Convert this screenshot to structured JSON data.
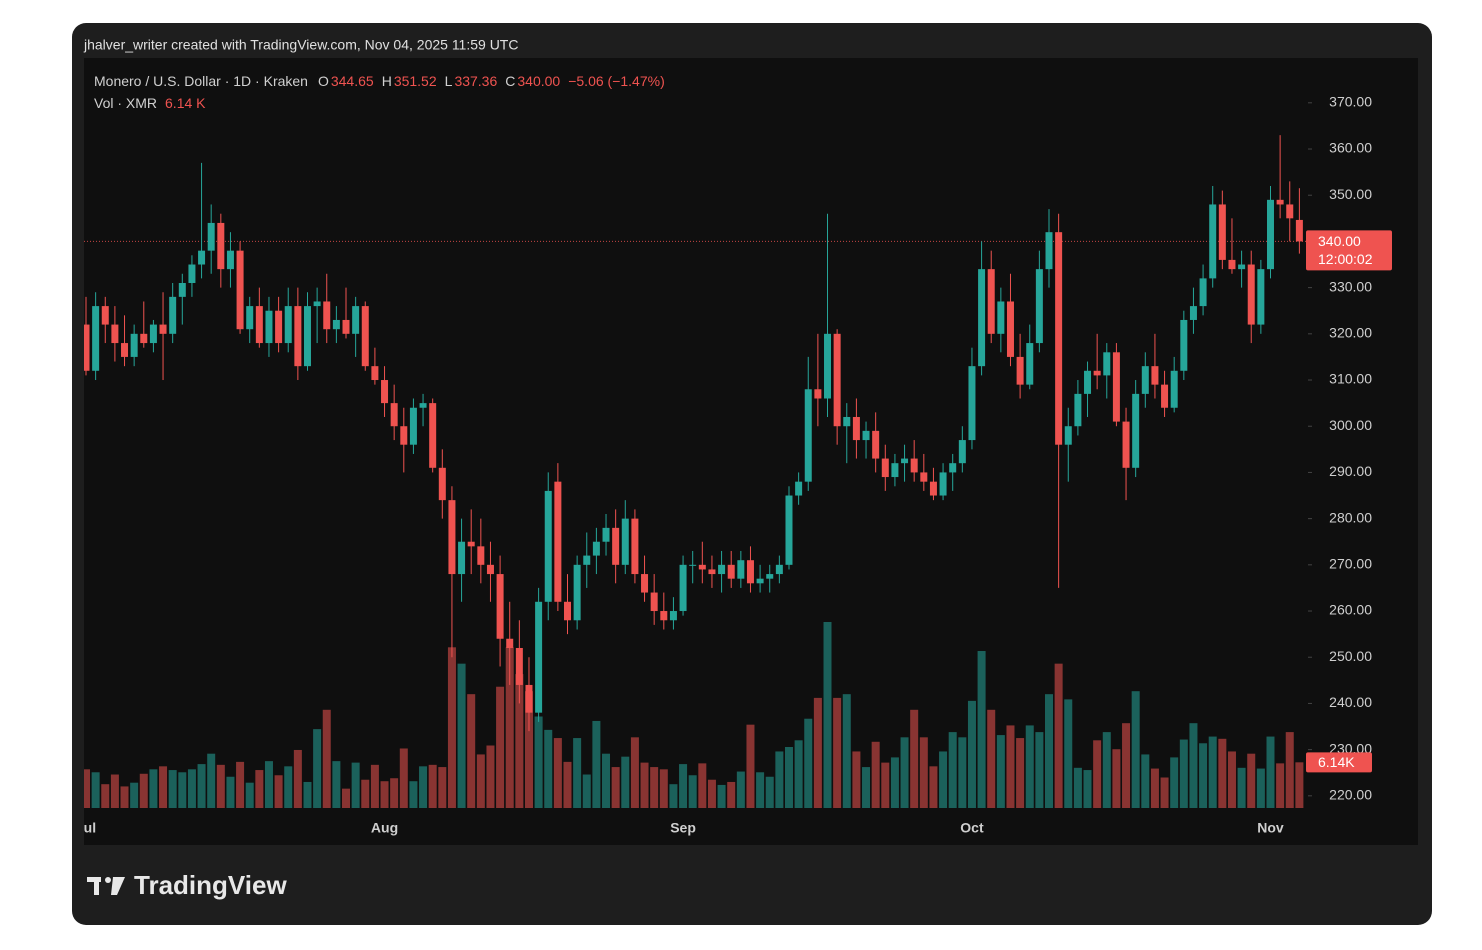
{
  "chart_data": {
    "type": "candlestick",
    "attribution": "jhalver_writer created with TradingView.com, Nov 04, 2025 11:59 UTC",
    "title": "Monero / U.S. Dollar · 1D · Kraken",
    "ohlc_header": [
      {
        "key": "O",
        "text": "344.65"
      },
      {
        "key": "H",
        "text": "351.52"
      },
      {
        "key": "L",
        "text": "337.36"
      },
      {
        "key": "C",
        "text": "340.00"
      }
    ],
    "change": "−5.06 (−1.47%)",
    "volume_header": "Vol · XMR",
    "volume_value": "6.14 K",
    "last_price_label": "340.00",
    "countdown": "12:00:02",
    "last_volume_label": "6.14K",
    "brand": "TradingView",
    "up_color": "#26a69a",
    "down_color": "#ef5350",
    "categories": [
      "Jul",
      null,
      null,
      null,
      null,
      null,
      null,
      null,
      null,
      null,
      null,
      null,
      null,
      null,
      null,
      null,
      null,
      null,
      null,
      null,
      null,
      null,
      null,
      null,
      null,
      null,
      null,
      null,
      null,
      null,
      null,
      "Aug",
      null,
      null,
      null,
      null,
      null,
      null,
      null,
      null,
      null,
      null,
      null,
      null,
      null,
      null,
      null,
      null,
      null,
      null,
      null,
      null,
      null,
      null,
      null,
      null,
      null,
      null,
      null,
      null,
      null,
      null,
      "Sep",
      null,
      null,
      null,
      null,
      null,
      null,
      null,
      null,
      null,
      null,
      null,
      null,
      null,
      null,
      null,
      null,
      null,
      null,
      null,
      null,
      null,
      null,
      null,
      null,
      null,
      null,
      null,
      null,
      null,
      "Oct",
      null,
      null,
      null,
      null,
      null,
      null,
      null,
      null,
      null,
      null,
      null,
      null,
      null,
      null,
      null,
      null,
      null,
      null,
      null,
      null,
      null,
      null,
      null,
      null,
      null,
      null,
      null,
      null,
      null,
      null,
      "Nov",
      null,
      null,
      null
    ],
    "open": [
      322,
      312,
      326,
      322,
      318,
      315,
      320,
      318,
      322,
      320,
      328,
      331,
      335,
      338,
      344,
      334,
      338,
      321,
      326,
      318,
      325,
      318,
      326,
      313,
      326,
      327,
      321,
      323,
      320,
      326,
      313,
      310,
      305,
      300,
      296,
      304,
      305,
      291,
      284,
      268,
      275,
      274,
      270,
      268,
      254,
      252,
      244,
      238,
      262,
      288,
      262,
      258,
      270,
      272,
      275,
      278,
      270,
      280,
      268,
      264,
      260,
      258,
      260,
      270,
      270,
      269,
      268,
      270,
      267,
      271,
      266,
      267,
      268,
      270,
      285,
      288,
      308,
      306,
      320,
      300,
      302,
      297,
      299,
      293,
      289,
      292,
      293,
      290,
      288,
      285,
      290,
      292,
      297,
      313,
      334,
      320,
      327,
      315,
      309,
      318,
      334,
      342,
      296,
      300,
      307,
      312,
      311,
      316,
      301,
      291,
      307,
      313,
      309,
      304,
      312,
      323,
      326,
      332,
      348,
      336,
      334,
      335,
      322,
      334,
      349,
      348,
      344.65
    ],
    "high": [
      328,
      329,
      328,
      326,
      324,
      322,
      327,
      323,
      329,
      331,
      333,
      337,
      357,
      348,
      346,
      342,
      340,
      328,
      330,
      328,
      328,
      330,
      330,
      329,
      330,
      333,
      326,
      330,
      328,
      327,
      317,
      313,
      309,
      304,
      306,
      307,
      306,
      295,
      287,
      280,
      282,
      280,
      275,
      272,
      262,
      258,
      250,
      265,
      290,
      292,
      268,
      272,
      277,
      278,
      281,
      282,
      284,
      282,
      272,
      268,
      264,
      263,
      272,
      273,
      275,
      272,
      273,
      273,
      273,
      274,
      270,
      270,
      272,
      287,
      290,
      315,
      320,
      346,
      321,
      305,
      306,
      301,
      303,
      296,
      294,
      296,
      297,
      294,
      291,
      292,
      294,
      300,
      317,
      340,
      338,
      330,
      333,
      320,
      322,
      338,
      347,
      346,
      304,
      310,
      314,
      320,
      318,
      318,
      304,
      310,
      316,
      320,
      312,
      315,
      325,
      330,
      335,
      352,
      351,
      345,
      338,
      338,
      336,
      352,
      363,
      353,
      351.52
    ],
    "low": [
      311,
      310,
      318,
      314,
      313,
      313,
      317,
      316,
      310,
      318,
      322,
      328,
      332,
      333,
      330,
      330,
      320,
      318,
      317,
      315,
      316,
      316,
      310,
      312,
      318,
      318,
      318,
      319,
      315,
      312,
      309,
      302,
      297,
      290,
      294,
      300,
      290,
      280,
      250,
      262,
      268,
      266,
      262,
      248,
      244,
      240,
      234,
      236,
      258,
      260,
      255,
      256,
      265,
      268,
      272,
      266,
      268,
      266,
      262,
      257,
      256,
      256,
      259,
      266,
      266,
      265,
      264,
      265,
      265,
      264,
      264,
      264,
      266,
      269,
      283,
      286,
      300,
      302,
      296,
      292,
      293,
      293,
      290,
      286,
      287,
      288,
      288,
      286,
      284,
      284,
      286,
      290,
      295,
      311,
      318,
      316,
      313,
      306,
      308,
      316,
      330,
      265,
      288,
      298,
      302,
      308,
      306,
      300,
      284,
      289,
      304,
      306,
      302,
      303,
      310,
      320,
      324,
      330,
      334,
      333,
      330,
      318,
      320,
      332,
      345,
      340,
      337.36
    ],
    "close": [
      312,
      326,
      322,
      318,
      315,
      320,
      318,
      322,
      320,
      328,
      331,
      335,
      338,
      344,
      334,
      338,
      321,
      326,
      318,
      325,
      318,
      326,
      313,
      326,
      327,
      321,
      323,
      320,
      326,
      313,
      310,
      305,
      300,
      296,
      304,
      305,
      291,
      284,
      268,
      275,
      274,
      270,
      268,
      254,
      252,
      244,
      238,
      262,
      286,
      262,
      258,
      270,
      272,
      275,
      278,
      270,
      280,
      268,
      264,
      260,
      258,
      260,
      270,
      270,
      269,
      268,
      270,
      267,
      271,
      266,
      267,
      268,
      270,
      285,
      288,
      308,
      306,
      320,
      300,
      302,
      297,
      299,
      293,
      289,
      292,
      293,
      290,
      288,
      285,
      290,
      292,
      297,
      313,
      334,
      320,
      327,
      315,
      309,
      318,
      334,
      342,
      296,
      300,
      307,
      312,
      311,
      316,
      301,
      291,
      307,
      313,
      309,
      304,
      312,
      323,
      326,
      332,
      348,
      336,
      334,
      335,
      322,
      334,
      349,
      348,
      345,
      340.0
    ],
    "volume": [
      5.2,
      4.8,
      3.2,
      4.5,
      2.9,
      3.4,
      4.6,
      5.2,
      5.6,
      5.1,
      4.8,
      5.2,
      5.9,
      7.3,
      5.8,
      4.2,
      6.2,
      3.4,
      5.1,
      6.3,
      4.4,
      5.6,
      7.8,
      3.5,
      10.6,
      13.2,
      6.3,
      2.6,
      6.1,
      3.8,
      5.8,
      3.6,
      4.0,
      8.0,
      3.6,
      5.6,
      5.8,
      5.5,
      21.6,
      19.4,
      15.3,
      7.2,
      8.4,
      16.3,
      21.6,
      18.0,
      15.7,
      12.3,
      10.5,
      9.4,
      6.2,
      9.4,
      4.5,
      11.7,
      7.3,
      5.5,
      6.9,
      9.5,
      6.1,
      5.5,
      5.2,
      3.2,
      5.9,
      4.4,
      6.0,
      3.8,
      3.1,
      3.5,
      4.9,
      11.2,
      4.8,
      4.2,
      7.6,
      8.2,
      9.1,
      12.0,
      14.8,
      25.0,
      14.8,
      15.3,
      7.6,
      5.5,
      8.9,
      6.1,
      6.8,
      9.5,
      13.2,
      9.5,
      5.6,
      7.6,
      10.2,
      9.5,
      14.4,
      21.1,
      13.2,
      9.8,
      11.1,
      9.4,
      11.1,
      10.2,
      15.3,
      19.4,
      14.6,
      5.4,
      5.1,
      9.1,
      10.2,
      7.9,
      11.4,
      15.7,
      7.2,
      5.3,
      4.1,
      6.8,
      9.2,
      11.4,
      8.7,
      9.6,
      9.3,
      7.6,
      5.4,
      7.3,
      5.3,
      9.6,
      6.0,
      10.2,
      6.14
    ],
    "ylim": [
      216.5,
      379.7
    ],
    "yticks": [
      {
        "value": 220,
        "label": "220.00"
      },
      {
        "value": 230,
        "label": "230.00"
      },
      {
        "value": 240,
        "label": "240.00"
      },
      {
        "value": 250,
        "label": "250.00"
      },
      {
        "value": 260,
        "label": "260.00"
      },
      {
        "value": 270,
        "label": "270.00"
      },
      {
        "value": 280,
        "label": "280.00"
      },
      {
        "value": 290,
        "label": "290.00"
      },
      {
        "value": 300,
        "label": "300.00"
      },
      {
        "value": 310,
        "label": "310.00"
      },
      {
        "value": 320,
        "label": "320.00"
      },
      {
        "value": 330,
        "label": "330.00"
      },
      {
        "value": 340,
        "label": "340.00"
      },
      {
        "value": 350,
        "label": "350.00"
      },
      {
        "value": 360,
        "label": "360.00"
      },
      {
        "value": 370,
        "label": "370.00"
      }
    ]
  }
}
